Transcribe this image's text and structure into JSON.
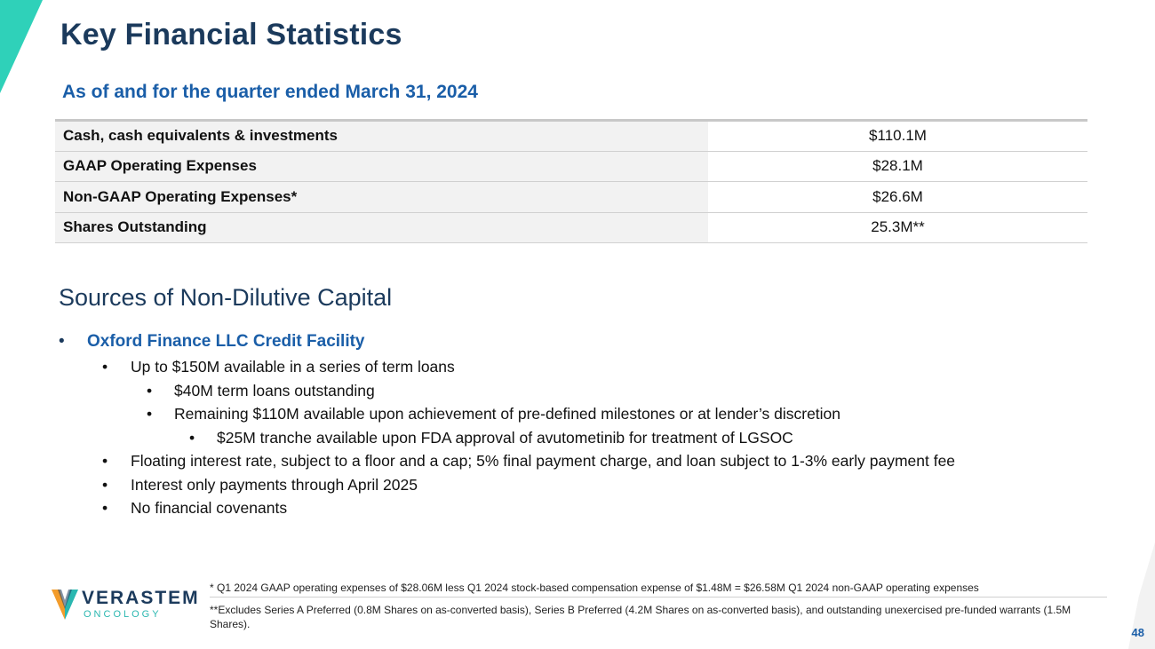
{
  "header": {
    "title": "Key Financial Statistics",
    "subtitle": "As of and for the quarter ended March 31, 2024"
  },
  "stats": [
    {
      "label": "Cash, cash equivalents & investments",
      "value": "$110.1M"
    },
    {
      "label": "GAAP Operating Expenses",
      "value": "$28.1M"
    },
    {
      "label": "Non-GAAP Operating Expenses*",
      "value": "$26.6M"
    },
    {
      "label": "Shares Outstanding",
      "value": "25.3M**"
    }
  ],
  "capital": {
    "title": "Sources of Non-Dilutive Capital",
    "facility": "Oxford Finance LLC Credit Facility",
    "bullets": [
      "Up to $150M available in a series of term loans",
      "$40M term loans outstanding",
      "Remaining $110M available upon achievement of pre-defined milestones or at lender’s discretion",
      "$25M tranche available upon FDA approval of avutometinib for treatment of LGSOC",
      "Floating interest rate, subject to a floor and a cap; 5% final payment charge, and loan subject to 1-3% early payment fee",
      "Interest only payments through April 2025",
      "No financial covenants"
    ]
  },
  "logo": {
    "name": "VERASTEM",
    "sub": "ONCOLOGY"
  },
  "footnotes": [
    "* Q1 2024 GAAP operating expenses of $28.06M less Q1 2024 stock-based compensation expense of $1.48M = $26.58M Q1 2024 non-GAAP operating expenses",
    "**Excludes Series A Preferred (0.8M Shares on as-converted basis), Series B Preferred (4.2M Shares on as-converted basis), and outstanding unexercised pre-funded warrants (1.5M Shares)."
  ],
  "page_number": "48",
  "colors": {
    "navy": "#1b3a5c",
    "blue": "#1a5ea8",
    "teal": "#2fd1b9",
    "logo_orange": "#f39c2b",
    "logo_teal": "#2ab7b0"
  }
}
